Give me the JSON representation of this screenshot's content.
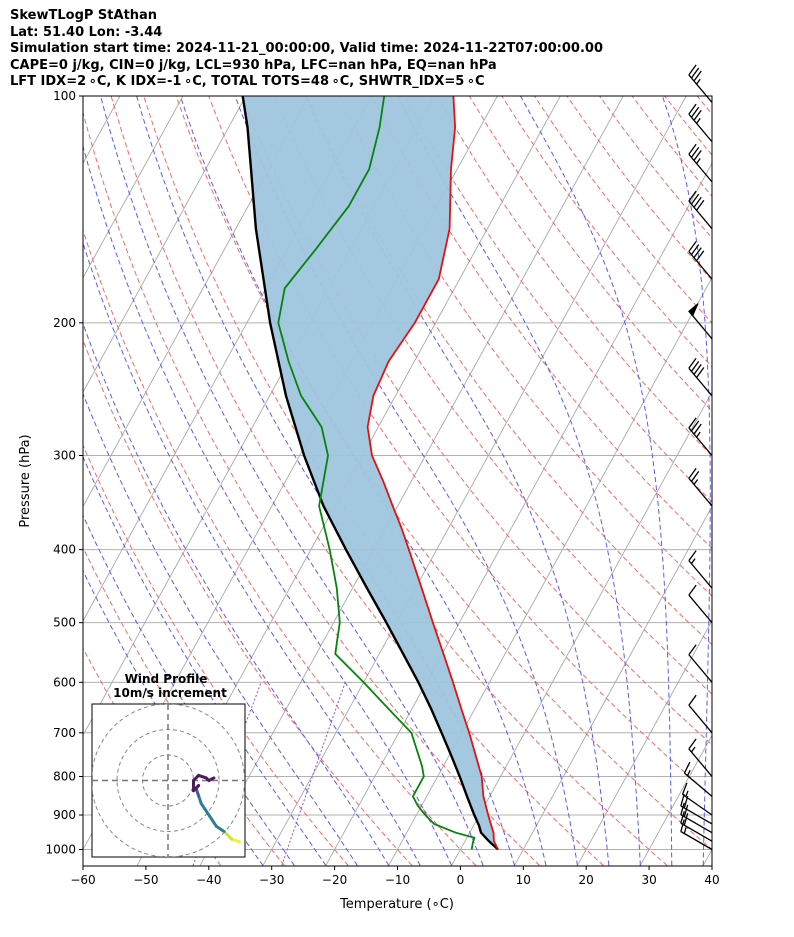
{
  "header": {
    "line1": "SkewTLogP StAthan",
    "line2": "Lat: 51.40   Lon: -3.44",
    "line3": "Simulation start time: 2024-11-21_00:00:00, Valid time: 2024-11-22T07:00:00.00",
    "line4": "CAPE=0 j/kg, CIN=0 j/kg, LCL=930 hPa, LFC=nan hPa, EQ=nan hPa",
    "line5": "LFT IDX=2 ∘C, K IDX=-1 ∘C, TOTAL TOTS=48 ∘C, SHWTR_IDX=5 ∘C"
  },
  "chart_data": {
    "type": "skewt-logp",
    "xlabel": "Temperature (∘C)",
    "ylabel": "Pressure (hPa)",
    "xlim": [
      -60,
      40
    ],
    "ylim": [
      1050,
      100
    ],
    "xticks": [
      -60,
      -50,
      -40,
      -30,
      -20,
      -10,
      0,
      10,
      20,
      30,
      40
    ],
    "xtick_labels": [
      "−60",
      "−50",
      "−40",
      "−30",
      "−20",
      "−10",
      "0",
      "10",
      "20",
      "30",
      "40"
    ],
    "yticks": [
      1000,
      900,
      800,
      700,
      600,
      500,
      400,
      300,
      200,
      100
    ],
    "ytick_labels": [
      "1000",
      "900",
      "800",
      "700",
      "600",
      "500",
      "400",
      "300",
      "200",
      "100"
    ],
    "colors": {
      "temperature": "#e8100c",
      "dewpoint": "#07830f",
      "parcel": "#000000",
      "cin_fill": "#9fc5de",
      "isotherm": "#a9a9a9",
      "dry_adiabat": "#f46a6a",
      "moist_adiabat": "#5c5cf0",
      "mixing_ratio": "#9b4dcc",
      "grid": "#b0b0b0"
    },
    "temperature": [
      [
        1000,
        6
      ],
      [
        975,
        4.6
      ],
      [
        950,
        3.8
      ],
      [
        925,
        2.6
      ],
      [
        900,
        1.4
      ],
      [
        850,
        -1.0
      ],
      [
        800,
        -3.0
      ],
      [
        750,
        -5.8
      ],
      [
        700,
        -8.8
      ],
      [
        650,
        -12.2
      ],
      [
        600,
        -15.8
      ],
      [
        550,
        -19.8
      ],
      [
        500,
        -24.2
      ],
      [
        450,
        -29.0
      ],
      [
        400,
        -34.4
      ],
      [
        375,
        -37.4
      ],
      [
        350,
        -40.8
      ],
      [
        325,
        -44.4
      ],
      [
        300,
        -48.5
      ],
      [
        275,
        -51.7
      ],
      [
        250,
        -53.5
      ],
      [
        225,
        -54.1
      ],
      [
        200,
        -53.3
      ],
      [
        175,
        -53.3
      ],
      [
        150,
        -56.0
      ],
      [
        125,
        -61.0
      ],
      [
        110,
        -64.0
      ],
      [
        100,
        -67.0
      ]
    ],
    "dewpoint": [
      [
        1000,
        1.8
      ],
      [
        980,
        1.4
      ],
      [
        965,
        1.2
      ],
      [
        950,
        -2.2
      ],
      [
        925,
        -6.4
      ],
      [
        900,
        -8.6
      ],
      [
        875,
        -10.6
      ],
      [
        850,
        -12.2
      ],
      [
        800,
        -12.2
      ],
      [
        775,
        -13.4
      ],
      [
        700,
        -18.0
      ],
      [
        650,
        -23.8
      ],
      [
        600,
        -30.0
      ],
      [
        550,
        -37.0
      ],
      [
        525,
        -38.0
      ],
      [
        500,
        -39.0
      ],
      [
        450,
        -42.5
      ],
      [
        400,
        -47.0
      ],
      [
        350,
        -52.5
      ],
      [
        300,
        -55.5
      ],
      [
        275,
        -59.0
      ],
      [
        250,
        -65.0
      ],
      [
        225,
        -70.0
      ],
      [
        200,
        -75.0
      ],
      [
        180,
        -77.0
      ],
      [
        160,
        -75.5
      ],
      [
        140,
        -74.0
      ],
      [
        125,
        -74.0
      ],
      [
        110,
        -76.0
      ],
      [
        100,
        -78.0
      ]
    ],
    "parcel": [
      [
        1000,
        6
      ],
      [
        975,
        3.8
      ],
      [
        950,
        1.8
      ],
      [
        930,
        0.9
      ],
      [
        900,
        -0.8
      ],
      [
        850,
        -3.6
      ],
      [
        800,
        -6.5
      ],
      [
        750,
        -9.7
      ],
      [
        700,
        -13.2
      ],
      [
        650,
        -17.0
      ],
      [
        600,
        -21.3
      ],
      [
        550,
        -26.2
      ],
      [
        500,
        -31.6
      ],
      [
        450,
        -37.7
      ],
      [
        400,
        -44.4
      ],
      [
        350,
        -51.8
      ],
      [
        300,
        -59.3
      ],
      [
        250,
        -67.4
      ],
      [
        200,
        -76.3
      ],
      [
        150,
        -86.8
      ],
      [
        125,
        -92.8
      ],
      [
        110,
        -97.0
      ],
      [
        100,
        -100.5
      ]
    ],
    "wind_barbs": [
      {
        "p": 1000,
        "speed_kt": 15,
        "dir_deg": 120
      },
      {
        "p": 975,
        "speed_kt": 20,
        "dir_deg": 120
      },
      {
        "p": 950,
        "speed_kt": 20,
        "dir_deg": 120
      },
      {
        "p": 925,
        "speed_kt": 20,
        "dir_deg": 120
      },
      {
        "p": 900,
        "speed_kt": 15,
        "dir_deg": 125
      },
      {
        "p": 850,
        "speed_kt": 15,
        "dir_deg": 130
      },
      {
        "p": 800,
        "speed_kt": 15,
        "dir_deg": 140
      },
      {
        "p": 700,
        "speed_kt": 10,
        "dir_deg": 140
      },
      {
        "p": 600,
        "speed_kt": 10,
        "dir_deg": 140
      },
      {
        "p": 500,
        "speed_kt": 10,
        "dir_deg": 140
      },
      {
        "p": 450,
        "speed_kt": 15,
        "dir_deg": 140
      },
      {
        "p": 350,
        "speed_kt": 25,
        "dir_deg": 140
      },
      {
        "p": 300,
        "speed_kt": 35,
        "dir_deg": 140
      },
      {
        "p": 250,
        "speed_kt": 40,
        "dir_deg": 140
      },
      {
        "p": 210,
        "speed_kt": 50,
        "dir_deg": 140
      },
      {
        "p": 175,
        "speed_kt": 40,
        "dir_deg": 140
      },
      {
        "p": 150,
        "speed_kt": 40,
        "dir_deg": 140
      },
      {
        "p": 130,
        "speed_kt": 35,
        "dir_deg": 140
      },
      {
        "p": 115,
        "speed_kt": 35,
        "dir_deg": 140
      },
      {
        "p": 102,
        "speed_kt": 35,
        "dir_deg": 140
      }
    ],
    "hodograph": {
      "title": "Wind Profile",
      "subtitle": "10m/s increment",
      "rings_ms": [
        10,
        20,
        30
      ],
      "points": [
        [
          28,
          -24
        ],
        [
          25,
          -23
        ],
        [
          22,
          -20
        ],
        [
          19,
          -18
        ],
        [
          17,
          -15
        ],
        [
          15,
          -12
        ],
        [
          13,
          -9
        ],
        [
          12,
          -6
        ],
        [
          11,
          -3
        ],
        [
          12,
          -2
        ],
        [
          10,
          -4
        ],
        [
          10,
          0
        ],
        [
          12,
          2
        ],
        [
          15,
          1
        ],
        [
          16,
          0
        ],
        [
          18,
          1
        ]
      ],
      "colors": [
        "#f4ef3a",
        "#d4e03a",
        "#2e7f96",
        "#2e7f96",
        "#2e7f96",
        "#2e7f96",
        "#2e7f96",
        "#3b5b8f",
        "#4a2f6e",
        "#4a1c5a",
        "#4a1c5a",
        "#4a1c5a",
        "#4a1c5a",
        "#4a1c5a",
        "#4a1c5a"
      ]
    }
  }
}
